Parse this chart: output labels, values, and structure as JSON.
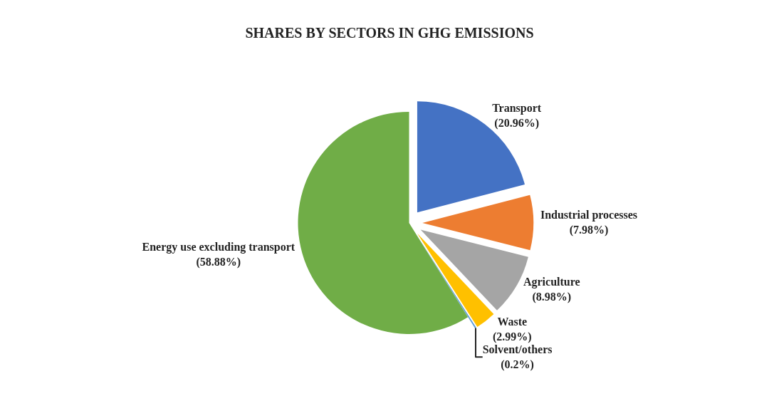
{
  "chart_data": {
    "type": "pie",
    "title": "SHARES BY SECTORS IN GHG EMISSIONS",
    "categories": [
      "Transport",
      "Industrial processes",
      "Agriculture",
      "Waste",
      "Solvent/others",
      "Energy use excluding transport"
    ],
    "values": [
      20.96,
      7.98,
      8.98,
      2.99,
      0.2,
      58.88
    ],
    "value_labels": [
      "(20.96%)",
      "(7.98%)",
      "(8.98%)",
      "(2.99%)",
      "(0.2%)",
      "(58.88%)"
    ],
    "colors": [
      "#4472c4",
      "#ed7d31",
      "#a5a5a5",
      "#ffc000",
      "#5b9bd5",
      "#70ad47"
    ],
    "legend": false
  }
}
